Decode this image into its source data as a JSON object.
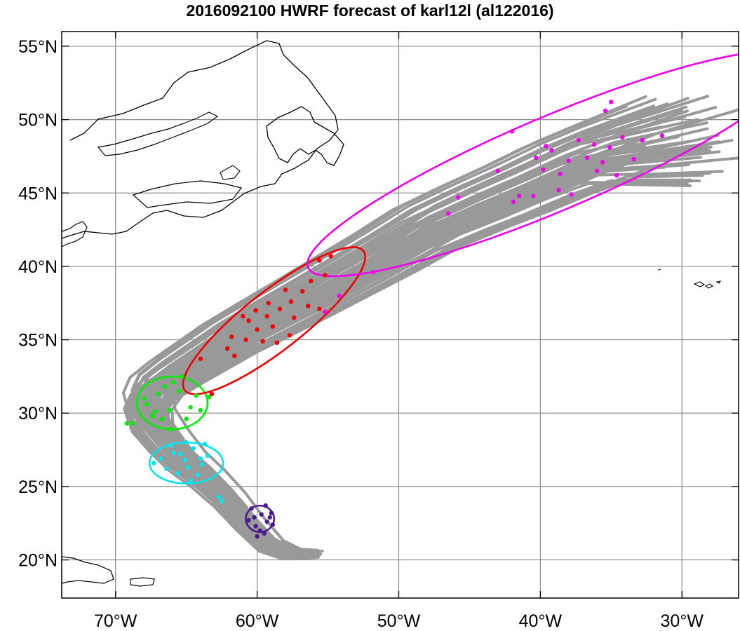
{
  "title": "2016092100 HWRF forecast of karl12l (al122016)",
  "axes": {
    "lon_ticks": [
      {
        "value": -70,
        "label": "70°W"
      },
      {
        "value": -60,
        "label": "60°W"
      },
      {
        "value": -50,
        "label": "50°W"
      },
      {
        "value": -40,
        "label": "40°W"
      },
      {
        "value": -30,
        "label": "30°W"
      }
    ],
    "lat_ticks": [
      {
        "value": 20,
        "label": "20°N"
      },
      {
        "value": 25,
        "label": "25°N"
      },
      {
        "value": 30,
        "label": "30°N"
      },
      {
        "value": 35,
        "label": "35°N"
      },
      {
        "value": 40,
        "label": "40°N"
      },
      {
        "value": 45,
        "label": "45°N"
      },
      {
        "value": 50,
        "label": "50°N"
      },
      {
        "value": 55,
        "label": "55°N"
      }
    ],
    "lon_range": [
      -73.8,
      -26.0
    ],
    "lat_range": [
      17.4,
      56.0
    ]
  },
  "colors": {
    "track": "#999999",
    "grid": "#8c8c8c",
    "coast": "#000000",
    "indigo": "#4b1b8c",
    "cyan": "#00e5ee",
    "green": "#00ee00",
    "red": "#ee0000",
    "magenta": "#ee00ee"
  },
  "map": {
    "track_center": [
      [
        -56.0,
        20.4
      ],
      [
        -57.5,
        20.4
      ],
      [
        -59.0,
        21.0
      ],
      [
        -60.5,
        22.5
      ],
      [
        -62.0,
        24.2
      ],
      [
        -63.5,
        25.6
      ],
      [
        -65.0,
        26.8
      ],
      [
        -66.3,
        28.2
      ],
      [
        -67.4,
        29.6
      ],
      [
        -67.6,
        30.6
      ],
      [
        -67.0,
        31.6
      ],
      [
        -65.5,
        32.6
      ],
      [
        -63.5,
        33.8
      ],
      [
        -61.5,
        35.0
      ],
      [
        -59.2,
        36.2
      ],
      [
        -56.5,
        37.6
      ],
      [
        -53.5,
        39.2
      ],
      [
        -50.5,
        40.8
      ],
      [
        -47.5,
        42.5
      ],
      [
        -44.0,
        44.0
      ],
      [
        -41.0,
        45.2
      ],
      [
        -38.0,
        46.5
      ],
      [
        -35.0,
        47.6
      ],
      [
        -32.0,
        48.5
      ]
    ],
    "ellipses": [
      {
        "color_key": "indigo",
        "lon": -59.8,
        "lat": 22.8,
        "rx_deg": 1.0,
        "ry_deg": 0.9,
        "rot_deg": 0
      },
      {
        "color_key": "cyan",
        "lon": -65.0,
        "lat": 26.6,
        "rx_deg": 2.6,
        "ry_deg": 1.4,
        "rot_deg": 0
      },
      {
        "color_key": "green",
        "lon": -66.0,
        "lat": 30.7,
        "rx_deg": 2.5,
        "ry_deg": 1.8,
        "rot_deg": 0
      },
      {
        "color_key": "red",
        "lon": -58.8,
        "lat": 36.3,
        "rx_deg": 8.0,
        "ry_deg": 2.0,
        "rot_deg": -38
      },
      {
        "color_key": "magenta",
        "lon": -39.1,
        "lat": 47.0,
        "rx_deg": 18.8,
        "ry_deg": 3.2,
        "rot_deg": -23
      }
    ],
    "dots": {
      "indigo": [
        [
          -60.1,
          22.3
        ],
        [
          -59.7,
          23.1
        ],
        [
          -59.3,
          22.6
        ],
        [
          -60.4,
          23.5
        ],
        [
          -59.0,
          23.2
        ],
        [
          -59.5,
          21.8
        ],
        [
          -60.2,
          22.9
        ],
        [
          -58.9,
          22.4
        ],
        [
          -59.8,
          22.0
        ],
        [
          -60.6,
          22.7
        ],
        [
          -59.4,
          23.7
        ],
        [
          -59.1,
          22.9
        ],
        [
          -60.0,
          21.6
        ]
      ],
      "cyan": [
        [
          -66.4,
          26.2
        ],
        [
          -65.9,
          27.3
        ],
        [
          -65.1,
          26.8
        ],
        [
          -64.5,
          27.6
        ],
        [
          -63.9,
          26.5
        ],
        [
          -66.8,
          26.9
        ],
        [
          -65.6,
          25.9
        ],
        [
          -64.2,
          25.8
        ],
        [
          -63.5,
          27.1
        ],
        [
          -65.0,
          28.0
        ],
        [
          -66.1,
          27.8
        ],
        [
          -64.9,
          26.3
        ],
        [
          -64.0,
          26.9
        ],
        [
          -62.7,
          24.3
        ],
        [
          -62.5,
          24.0
        ],
        [
          -67.3,
          26.6
        ],
        [
          -63.7,
          27.9
        ],
        [
          -64.7,
          25.4
        ],
        [
          -65.4,
          27.2
        ]
      ],
      "green": [
        [
          -67.8,
          30.6
        ],
        [
          -67.0,
          31.3
        ],
        [
          -66.2,
          30.2
        ],
        [
          -65.5,
          31.5
        ],
        [
          -64.7,
          30.4
        ],
        [
          -66.7,
          29.6
        ],
        [
          -65.9,
          32.1
        ],
        [
          -65.0,
          29.6
        ],
        [
          -64.3,
          31.2
        ],
        [
          -67.4,
          29.8
        ],
        [
          -63.4,
          31.1
        ],
        [
          -66.1,
          28.9
        ],
        [
          -65.3,
          32.5
        ],
        [
          -68.0,
          31.0
        ],
        [
          -69.2,
          29.3
        ],
        [
          -68.8,
          29.3
        ],
        [
          -64.0,
          30.2
        ],
        [
          -66.5,
          31.8
        ],
        [
          -67.2,
          30.1
        ]
      ],
      "red": [
        [
          -61.6,
          33.9
        ],
        [
          -60.8,
          35.0
        ],
        [
          -60.0,
          35.7
        ],
        [
          -59.3,
          36.6
        ],
        [
          -58.4,
          37.1
        ],
        [
          -57.6,
          37.6
        ],
        [
          -56.8,
          38.3
        ],
        [
          -56.2,
          39.0
        ],
        [
          -55.6,
          40.4
        ],
        [
          -60.6,
          36.3
        ],
        [
          -59.6,
          34.9
        ],
        [
          -58.9,
          35.9
        ],
        [
          -57.4,
          36.5
        ],
        [
          -56.4,
          37.3
        ],
        [
          -55.2,
          39.4
        ],
        [
          -61.8,
          35.2
        ],
        [
          -60.1,
          37.0
        ],
        [
          -58.0,
          38.4
        ],
        [
          -54.8,
          40.7
        ],
        [
          -63.2,
          31.3
        ],
        [
          -64.0,
          33.7
        ],
        [
          -62.1,
          34.4
        ],
        [
          -61.0,
          36.6
        ],
        [
          -59.2,
          37.5
        ],
        [
          -55.6,
          37.1
        ],
        [
          -57.7,
          35.3
        ],
        [
          -58.6,
          34.8
        ]
      ],
      "magenta": [
        [
          -46.5,
          43.6
        ],
        [
          -45.8,
          44.7
        ],
        [
          -42.0,
          49.2
        ],
        [
          -43.0,
          46.5
        ],
        [
          -41.5,
          44.8
        ],
        [
          -40.3,
          47.4
        ],
        [
          -39.8,
          46.6
        ],
        [
          -39.2,
          47.9
        ],
        [
          -38.6,
          46.3
        ],
        [
          -38.0,
          47.2
        ],
        [
          -37.3,
          48.6
        ],
        [
          -36.7,
          47.4
        ],
        [
          -36.2,
          48.3
        ],
        [
          -35.6,
          47.1
        ],
        [
          -35.1,
          48.1
        ],
        [
          -34.6,
          46.2
        ],
        [
          -34.2,
          48.8
        ],
        [
          -33.4,
          47.3
        ],
        [
          -32.8,
          48.6
        ],
        [
          -31.4,
          48.9
        ],
        [
          -35.0,
          51.2
        ],
        [
          -35.4,
          50.6
        ],
        [
          -40.5,
          44.8
        ],
        [
          -41.9,
          44.4
        ],
        [
          -38.7,
          45.2
        ],
        [
          -37.8,
          44.9
        ],
        [
          -36.0,
          46.5
        ],
        [
          -39.6,
          48.2
        ],
        [
          -54.2,
          38.0
        ],
        [
          -51.8,
          39.6
        ],
        [
          -55.2,
          36.9
        ]
      ]
    }
  }
}
